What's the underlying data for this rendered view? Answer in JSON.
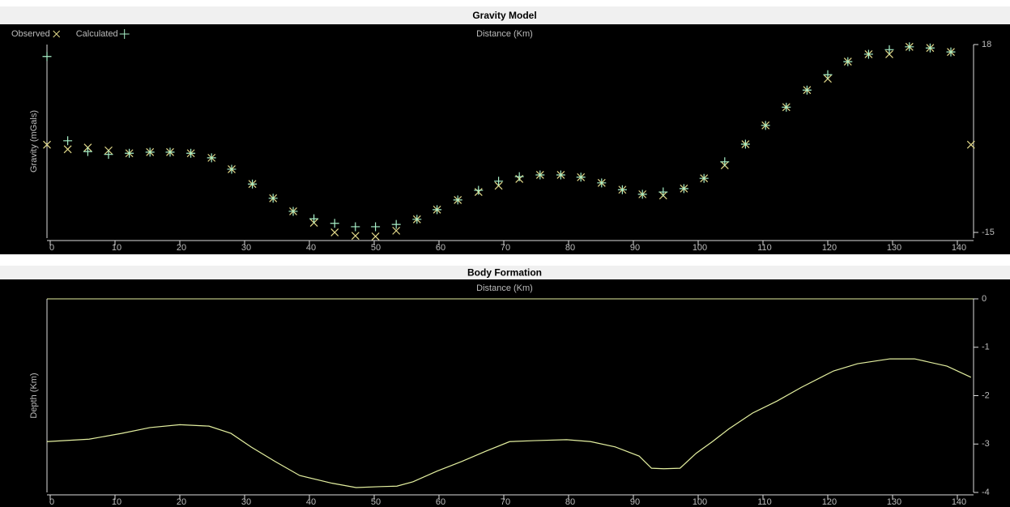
{
  "chart_data": [
    {
      "type": "scatter",
      "title": "Gravity Model",
      "x_label": "Distance (Km)",
      "y_label": "Gravity (mGals)",
      "x": [
        -0.5,
        2.7,
        5.8,
        9.0,
        12.2,
        15.4,
        18.5,
        21.7,
        24.9,
        28.0,
        31.2,
        34.4,
        37.5,
        40.7,
        43.9,
        47.1,
        50.2,
        53.4,
        56.6,
        59.7,
        62.9,
        66.1,
        69.2,
        72.4,
        75.6,
        78.8,
        81.9,
        85.1,
        88.3,
        91.4,
        94.6,
        97.8,
        100.9,
        104.1,
        107.3,
        110.4,
        113.6,
        116.8,
        120.0,
        123.1,
        126.3,
        129.5,
        132.6,
        135.8,
        139.0,
        142.1
      ],
      "series": [
        {
          "name": "Observed",
          "marker": "x",
          "color": "#e2d98a",
          "values": [
            0.4,
            -0.4,
            -0.1,
            -0.6,
            -1.1,
            -0.9,
            -0.9,
            -1.1,
            -1.9,
            -3.9,
            -6.5,
            -9.0,
            -11.3,
            -13.3,
            -15.0,
            -15.6,
            -15.7,
            -14.7,
            -12.7,
            -11.0,
            -9.3,
            -7.9,
            -6.8,
            -5.6,
            -4.9,
            -4.9,
            -5.3,
            -6.3,
            -7.5,
            -8.3,
            -8.5,
            -7.3,
            -5.5,
            -3.2,
            0.5,
            3.8,
            7.0,
            10.0,
            12.0,
            15.0,
            16.3,
            16.3,
            17.6,
            17.4,
            16.7,
            0.4
          ]
        },
        {
          "name": "Calculated",
          "marker": "+",
          "color": "#a8f0c8",
          "values": [
            15.9,
            1.1,
            -0.8,
            -1.3,
            -1.1,
            -0.9,
            -0.9,
            -1.1,
            -1.9,
            -3.9,
            -6.5,
            -9.0,
            -11.3,
            -12.6,
            -13.4,
            -14.0,
            -14.0,
            -13.6,
            -12.7,
            -11.0,
            -9.3,
            -7.6,
            -6.0,
            -5.2,
            -4.9,
            -4.9,
            -5.3,
            -6.3,
            -7.5,
            -8.3,
            -7.9,
            -7.3,
            -5.5,
            -2.6,
            0.5,
            3.8,
            7.0,
            10.0,
            12.7,
            15.0,
            16.3,
            17.1,
            17.6,
            17.4,
            16.7,
            null
          ]
        }
      ],
      "xlim": [
        -0.5,
        142.5
      ],
      "xticks": [
        0,
        10,
        20,
        30,
        40,
        50,
        60,
        70,
        80,
        90,
        100,
        110,
        120,
        130,
        140
      ],
      "ylim": [
        -16,
        18
      ],
      "yticks": [
        18,
        -15
      ]
    },
    {
      "type": "line",
      "title": "Body Formation",
      "x_label": "Distance (Km)",
      "y_label": "Depth (Km)",
      "color": "#e4f0a0",
      "x": [
        -0.5,
        6.0,
        11.0,
        15.4,
        20.0,
        24.5,
        27.9,
        31.0,
        34.7,
        38.5,
        43.5,
        47.2,
        51.0,
        53.5,
        56.0,
        59.7,
        63.5,
        67.2,
        70.9,
        74.7,
        79.7,
        83.4,
        87.2,
        90.9,
        92.8,
        94.7,
        97.2,
        99.7,
        102.2,
        104.7,
        108.4,
        112.2,
        115.9,
        120.9,
        124.6,
        129.6,
        133.4,
        138.4,
        142.1
      ],
      "values": [
        -2.95,
        -2.9,
        -2.78,
        -2.66,
        -2.6,
        -2.63,
        -2.78,
        -3.06,
        -3.36,
        -3.65,
        -3.81,
        -3.9,
        -3.88,
        -3.87,
        -3.78,
        -3.56,
        -3.36,
        -3.15,
        -2.95,
        -2.93,
        -2.91,
        -2.95,
        -3.06,
        -3.25,
        -3.5,
        -3.51,
        -3.5,
        -3.19,
        -2.95,
        -2.69,
        -2.36,
        -2.11,
        -1.83,
        -1.49,
        -1.34,
        -1.24,
        -1.24,
        -1.39,
        -1.62
      ],
      "xlim": [
        -0.5,
        142.5
      ],
      "xticks": [
        0,
        10,
        20,
        30,
        40,
        50,
        60,
        70,
        80,
        90,
        100,
        110,
        120,
        130,
        140
      ],
      "ylim": [
        -4,
        0
      ],
      "yticks": [
        0,
        -1,
        -2,
        -3,
        -4
      ]
    }
  ]
}
